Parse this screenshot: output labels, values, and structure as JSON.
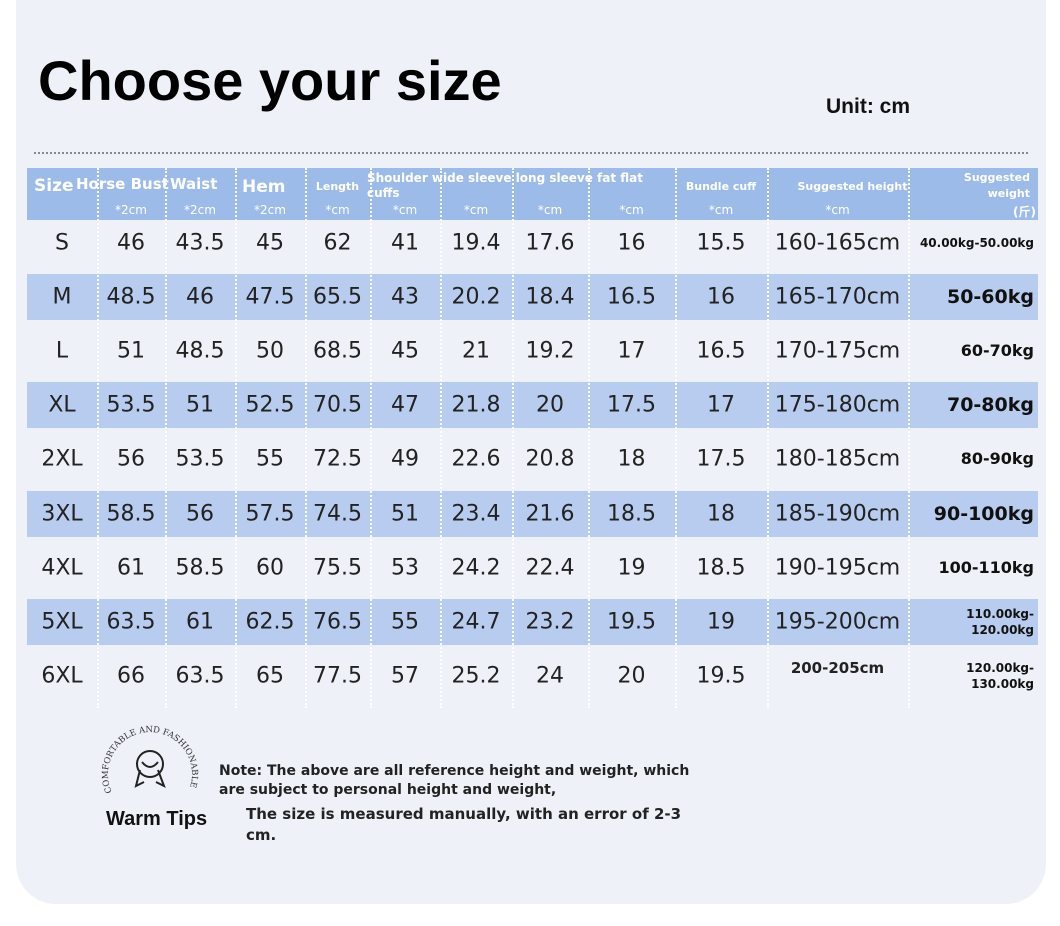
{
  "header": {
    "title": "Choose your size",
    "unit": "Unit: cm"
  },
  "table": {
    "group_label": "Shoulder wide sleeve long sleeve fat flat cuffs",
    "columns": [
      {
        "label": "Size"
      },
      {
        "label": "Horse Bust",
        "unit": "*2cm"
      },
      {
        "label": "Waist",
        "unit": "*2cm"
      },
      {
        "label": "Hem",
        "unit": "*2cm"
      },
      {
        "label": "Length",
        "unit": "*cm"
      },
      {
        "unit": "*cm"
      },
      {
        "unit": "*cm"
      },
      {
        "unit": "*cm"
      },
      {
        "unit": "*cm"
      },
      {
        "label": "Bundle cuff",
        "unit": "*cm"
      },
      {
        "label": "Suggested height",
        "unit": "*cm"
      },
      {
        "label": "Suggested weight",
        "unit": "(斤)"
      }
    ],
    "rows": [
      [
        "S",
        46,
        43.5,
        45,
        62,
        41,
        19.4,
        17.6,
        16,
        15.5,
        "160-165cm",
        "40.00kg-50.00kg"
      ],
      [
        "M",
        48.5,
        46,
        47.5,
        65.5,
        43,
        20.2,
        18.4,
        16.5,
        16,
        "165-170cm",
        "50-60kg"
      ],
      [
        "L",
        51,
        48.5,
        50,
        68.5,
        45,
        21,
        19.2,
        17,
        16.5,
        "170-175cm",
        "60-70kg"
      ],
      [
        "XL",
        53.5,
        51,
        52.5,
        70.5,
        47,
        21.8,
        20,
        17.5,
        17,
        "175-180cm",
        "70-80kg"
      ],
      [
        "2XL",
        56,
        53.5,
        55,
        72.5,
        49,
        22.6,
        20.8,
        18,
        17.5,
        "180-185cm",
        "80-90kg"
      ],
      [
        "3XL",
        58.5,
        56,
        57.5,
        74.5,
        51,
        23.4,
        21.6,
        18.5,
        18,
        "185-190cm",
        "90-100kg"
      ],
      [
        "4XL",
        61,
        58.5,
        60,
        75.5,
        53,
        24.2,
        22.4,
        19,
        18.5,
        "190-195cm",
        "100-110kg"
      ],
      [
        "5XL",
        63.5,
        61,
        62.5,
        76.5,
        55,
        24.7,
        23.2,
        19.5,
        19,
        "195-200cm",
        "110.00kg-120.00kg"
      ],
      [
        "6XL",
        66,
        63.5,
        65,
        77.5,
        57,
        25.2,
        24,
        20,
        19.5,
        "200-205cm",
        "120.00kg-130.00kg"
      ]
    ]
  },
  "footer": {
    "badge": "COMFORTABLE AND FASHIONABLE",
    "tips_title": "Warm Tips",
    "note": "Note: The above are all reference height and weight, which are subject to personal height and weight,",
    "measure_note": "The size is measured manually, with an error of 2-3 cm."
  }
}
